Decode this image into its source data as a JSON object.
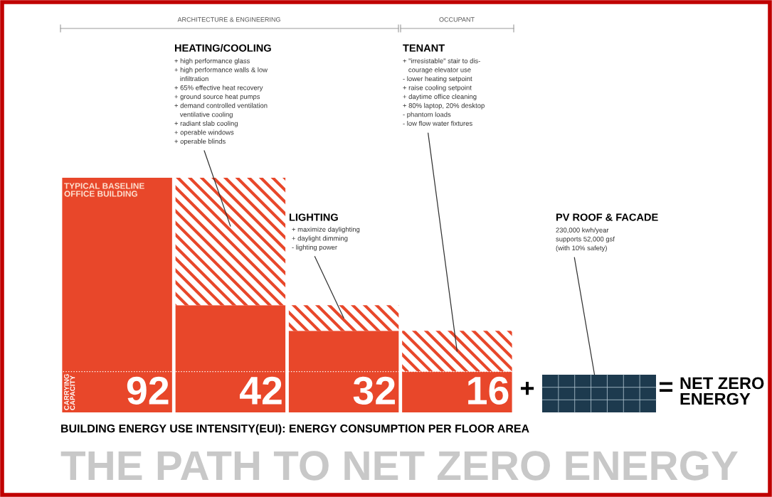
{
  "chart_data": {
    "type": "bar",
    "title": "THE PATH TO NET ZERO ENERGY",
    "xlabel": "BUILDING ENERGY USE INTENSITY(EUI): ENERGY CONSUMPTION PER FLOOR AREA",
    "categories": [
      null,
      null,
      null,
      null
    ],
    "stacked": true,
    "series": [
      {
        "color": "#e8472a",
        "values": [
          92,
          42,
          32,
          16
        ],
        "value_labels": [
          "92",
          "42",
          "32",
          "16"
        ]
      },
      {
        "color": "#e8472a",
        "values": [
          null,
          50,
          10,
          16
        ]
      }
    ],
    "ylim": [
      0,
      92
    ],
    "grid": false,
    "legend": false,
    "ref_lines": [
      {
        "axis": "y",
        "value": 16,
        "label": "CARRYING CAPACITY",
        "color": "#ffffff",
        "line_style": "dotted"
      }
    ],
    "annotations": [
      "ARCHITECTURE & ENGINEERING",
      "OCCUPANT",
      "HEATING/COOLING",
      "+ high performance glass\n+ high performance walls & low\n   infiltration\n+ 65% effective heat recovery\n+ ground source heat pumps\n+ demand controlled ventilation\n   ventilative cooling\n+ radiant slab cooling\n+ operable windows\n+ operable blinds",
      "TENANT",
      "+ \"irresistable\" stair to dis-\n   courage elevator use\n- lower heating setpoint\n+ raise cooling setpoint\n+ daytime office cleaning\n+ 80% laptop, 20% desktop\n- phantom loads\n- low flow water fixtures",
      "LIGHTING",
      "+ maximize daylighting\n+ daylight dimming\n- lighting power",
      "PV ROOF & FACADE",
      "230,000 kwh/year\nsupports 52,000 gsf\n(with 10% safety)",
      "TYPICAL BASELINE\nOFFICE BUILDING",
      "+",
      "=",
      "NET ZERO\nENERGY"
    ]
  }
}
